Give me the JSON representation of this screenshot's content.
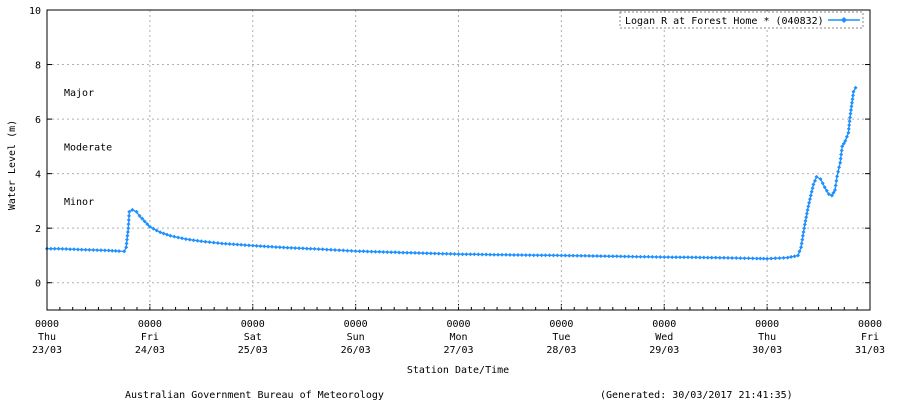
{
  "chart_data": {
    "type": "line",
    "ylabel": "Water Level (m)",
    "xlabel": "Station Date/Time",
    "ylim": [
      -1,
      10
    ],
    "yticks": [
      0,
      2,
      4,
      6,
      8,
      10
    ],
    "x_unit": "days since 0000 Thu 23/03/2017",
    "xlim": [
      0,
      8
    ],
    "xticks": [
      {
        "time": "0000",
        "day": "Thu",
        "date": "23/03"
      },
      {
        "time": "0000",
        "day": "Fri",
        "date": "24/03"
      },
      {
        "time": "0000",
        "day": "Sat",
        "date": "25/03"
      },
      {
        "time": "0000",
        "day": "Sun",
        "date": "26/03"
      },
      {
        "time": "0000",
        "day": "Mon",
        "date": "27/03"
      },
      {
        "time": "0000",
        "day": "Tue",
        "date": "28/03"
      },
      {
        "time": "0000",
        "day": "Wed",
        "date": "29/03"
      },
      {
        "time": "0000",
        "day": "Thu",
        "date": "30/03"
      },
      {
        "time": "0000",
        "day": "Fri",
        "date": "31/03"
      }
    ],
    "grid": true,
    "legend_position": "top-right",
    "flood_levels": [
      {
        "label": "Major",
        "level": 7.0
      },
      {
        "label": "Moderate",
        "level": 5.0
      },
      {
        "label": "Minor",
        "level": 3.0
      }
    ],
    "series": [
      {
        "name": "Logan R at Forest Home * (040832)",
        "color": "#1e90ff",
        "points": [
          [
            0.0,
            1.25
          ],
          [
            0.15,
            1.24
          ],
          [
            0.3,
            1.22
          ],
          [
            0.45,
            1.2
          ],
          [
            0.6,
            1.18
          ],
          [
            0.7,
            1.16
          ],
          [
            0.75,
            1.15
          ],
          [
            0.77,
            1.3
          ],
          [
            0.79,
            2.0
          ],
          [
            0.8,
            2.6
          ],
          [
            0.83,
            2.67
          ],
          [
            0.87,
            2.6
          ],
          [
            0.9,
            2.45
          ],
          [
            0.95,
            2.25
          ],
          [
            1.0,
            2.05
          ],
          [
            1.1,
            1.85
          ],
          [
            1.2,
            1.72
          ],
          [
            1.35,
            1.6
          ],
          [
            1.5,
            1.52
          ],
          [
            1.7,
            1.44
          ],
          [
            2.0,
            1.36
          ],
          [
            2.3,
            1.29
          ],
          [
            2.6,
            1.24
          ],
          [
            3.0,
            1.16
          ],
          [
            3.5,
            1.1
          ],
          [
            4.0,
            1.05
          ],
          [
            4.5,
            1.02
          ],
          [
            5.0,
            1.0
          ],
          [
            5.5,
            0.97
          ],
          [
            6.0,
            0.94
          ],
          [
            6.5,
            0.92
          ],
          [
            6.9,
            0.89
          ],
          [
            7.0,
            0.88
          ],
          [
            7.2,
            0.92
          ],
          [
            7.3,
            1.0
          ],
          [
            7.33,
            1.3
          ],
          [
            7.36,
            2.0
          ],
          [
            7.4,
            2.8
          ],
          [
            7.45,
            3.6
          ],
          [
            7.48,
            3.88
          ],
          [
            7.52,
            3.8
          ],
          [
            7.56,
            3.5
          ],
          [
            7.6,
            3.25
          ],
          [
            7.63,
            3.2
          ],
          [
            7.66,
            3.4
          ],
          [
            7.68,
            3.9
          ],
          [
            7.71,
            4.4
          ],
          [
            7.73,
            5.0
          ],
          [
            7.76,
            5.2
          ],
          [
            7.79,
            5.5
          ],
          [
            7.81,
            6.2
          ],
          [
            7.84,
            7.0
          ],
          [
            7.86,
            7.15
          ]
        ]
      }
    ]
  },
  "footer": {
    "agency": "Australian Government Bureau of Meteorology",
    "generated": "(Generated: 30/03/2017 21:41:35)"
  }
}
